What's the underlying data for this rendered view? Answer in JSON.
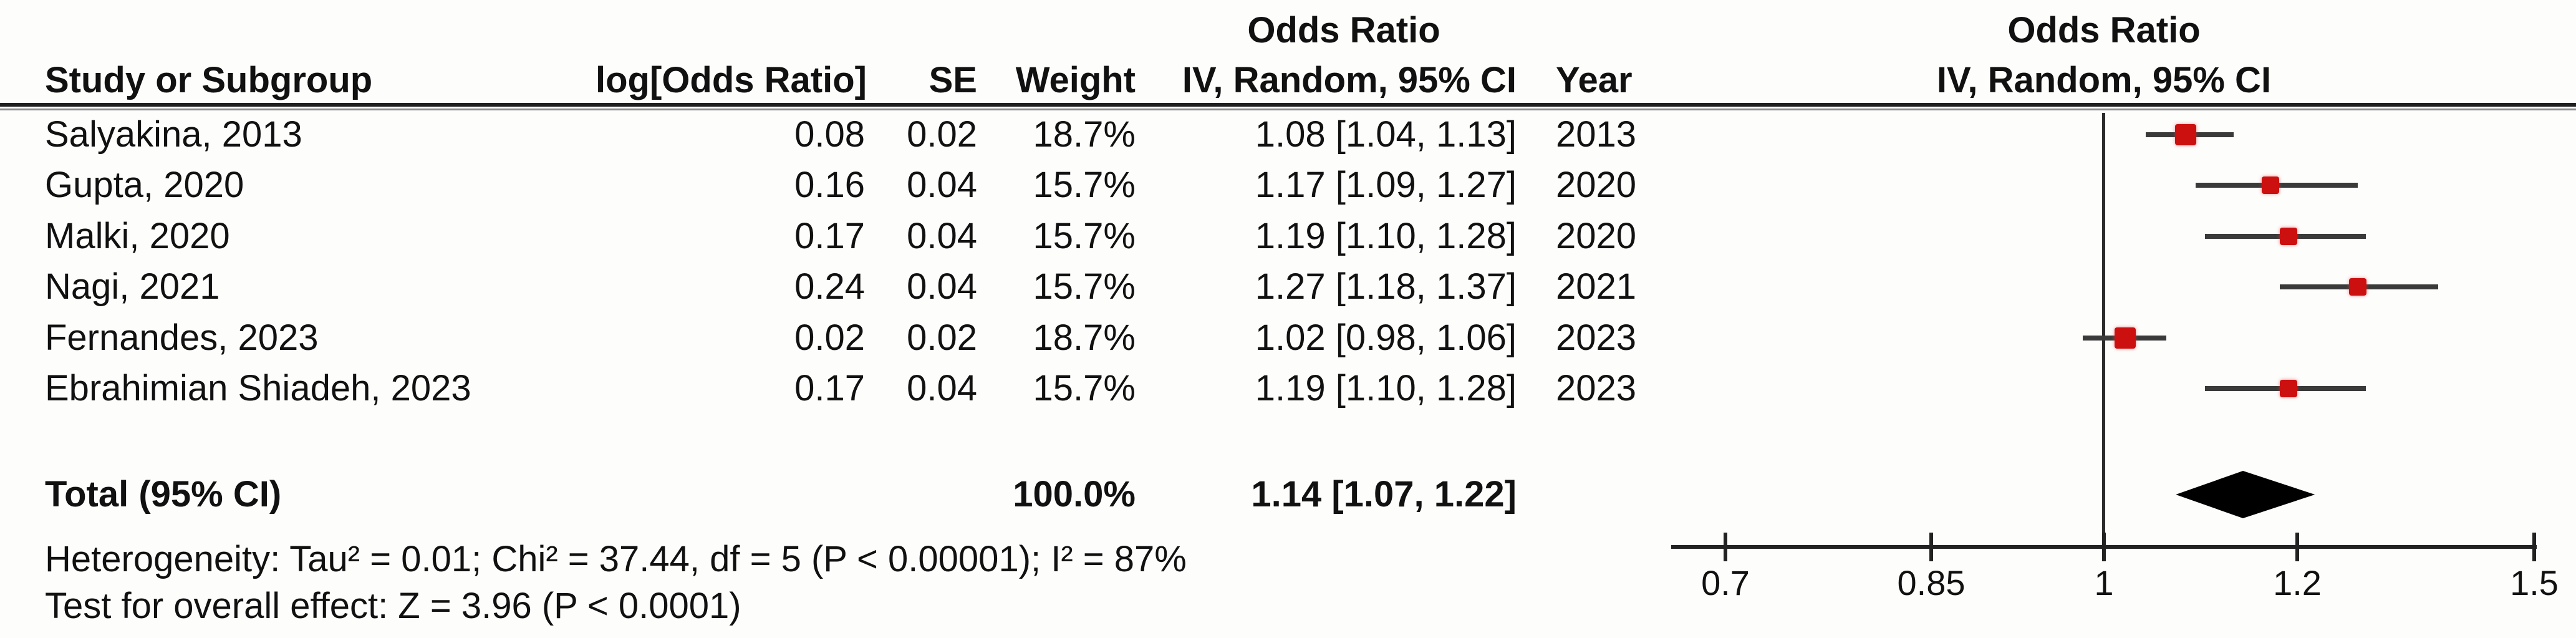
{
  "chart_data": {
    "type": "forest",
    "columns": {
      "study": "Study or Subgroup",
      "log_or": "log[Odds Ratio]",
      "se": "SE",
      "weight": "Weight",
      "or_title": "Odds Ratio",
      "ci": "IV, Random, 95% CI",
      "year": "Year"
    },
    "x_scale": "log",
    "axis_ticks": [
      {
        "value": 0.7,
        "label": "0.7"
      },
      {
        "value": 0.85,
        "label": "0.85"
      },
      {
        "value": 1,
        "label": "1"
      },
      {
        "value": 1.2,
        "label": "1.2"
      },
      {
        "value": 1.5,
        "label": "1.5"
      }
    ],
    "null_line_value": 1,
    "studies": [
      {
        "name": "Salyakina, 2013",
        "log_or": "0.08",
        "se": "0.02",
        "weight": "18.7%",
        "weight_pct": 18.7,
        "ci_text": "1.08 [1.04, 1.13]",
        "or": 1.08,
        "ci_low": 1.04,
        "ci_high": 1.13,
        "year": "2013"
      },
      {
        "name": "Gupta, 2020",
        "log_or": "0.16",
        "se": "0.04",
        "weight": "15.7%",
        "weight_pct": 15.7,
        "ci_text": "1.17 [1.09, 1.27]",
        "or": 1.17,
        "ci_low": 1.09,
        "ci_high": 1.27,
        "year": "2020"
      },
      {
        "name": "Malki, 2020",
        "log_or": "0.17",
        "se": "0.04",
        "weight": "15.7%",
        "weight_pct": 15.7,
        "ci_text": "1.19 [1.10, 1.28]",
        "or": 1.19,
        "ci_low": 1.1,
        "ci_high": 1.28,
        "year": "2020"
      },
      {
        "name": "Nagi, 2021",
        "log_or": "0.24",
        "se": "0.04",
        "weight": "15.7%",
        "weight_pct": 15.7,
        "ci_text": "1.27 [1.18, 1.37]",
        "or": 1.27,
        "ci_low": 1.18,
        "ci_high": 1.37,
        "year": "2021"
      },
      {
        "name": "Fernandes, 2023",
        "log_or": "0.02",
        "se": "0.02",
        "weight": "18.7%",
        "weight_pct": 18.7,
        "ci_text": "1.02 [0.98, 1.06]",
        "or": 1.02,
        "ci_low": 0.98,
        "ci_high": 1.06,
        "year": "2023"
      },
      {
        "name": "Ebrahimian Shiadeh, 2023",
        "log_or": "0.17",
        "se": "0.04",
        "weight": "15.7%",
        "weight_pct": 15.7,
        "ci_text": "1.19 [1.10, 1.28]",
        "or": 1.19,
        "ci_low": 1.1,
        "ci_high": 1.28,
        "year": "2023"
      }
    ],
    "total": {
      "label": "Total (95% CI)",
      "weight": "100.0%",
      "ci_text": "1.14 [1.07, 1.22]",
      "or": 1.14,
      "ci_low": 1.07,
      "ci_high": 1.22
    },
    "heterogeneity": "Heterogeneity: Tau² = 0.01; Chi² = 37.44, df = 5 (P < 0.00001); I² = 87%",
    "overall_effect": "Test for overall effect: Z = 3.96 (P < 0.0001)",
    "marker_color": "#cc0f0f",
    "diamond_color": "#000000"
  }
}
